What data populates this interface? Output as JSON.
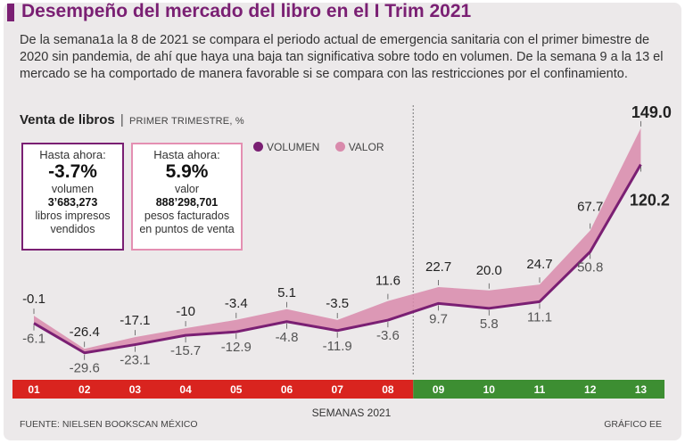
{
  "title": "Desempeño del mercado del libro en el I Trim 2021",
  "intro": "De la semana1a la 8 de 2021 se compara el periodo actual de emergencia sanitaria con el primer bimestre de 2020 sin pandemia, de ahí que haya una baja tan significativa sobre todo en volumen. De la semana 9 a la 13 el mercado se ha comportado de manera favorable si se compara con las restricciones por el confinamiento.",
  "subtitle": {
    "main": "Venta de libros",
    "separator": "|",
    "unit": "PRIMER TRIMESTRE, %"
  },
  "box_volume": {
    "head": "Hasta ahora:",
    "value": "-3.7%",
    "label": "volumen",
    "number": "3’683,273",
    "desc1": "libros impresos",
    "desc2": "vendidos"
  },
  "box_value": {
    "head": "Hasta ahora:",
    "value": "5.9%",
    "label": "valor",
    "number": "888’298,701",
    "desc1": "pesos facturados",
    "desc2": "en puntos de venta"
  },
  "footer": {
    "source": "FUENTE: NIELSEN BOOKSCAN MÉXICO",
    "credit": "GRÁFICO EE"
  },
  "colors": {
    "title": "#7a1f73",
    "volumen": "#7a1f73",
    "valor": "#d98aac",
    "weeks_red": "#d9241f",
    "weeks_green": "#3d8e32"
  },
  "chart_data": {
    "type": "area",
    "title": "Venta de libros",
    "xlabel": "SEMANAS 2021",
    "ylabel": "%",
    "categories": [
      "01",
      "02",
      "03",
      "04",
      "05",
      "06",
      "07",
      "08",
      "09",
      "10",
      "11",
      "12",
      "13"
    ],
    "ylim": [
      -30,
      150
    ],
    "divider_after_index": 7,
    "legend": [
      "VOLUMEN",
      "VALOR"
    ],
    "series": [
      {
        "name": "VOLUMEN",
        "type": "line",
        "values": [
          -6.1,
          -29.6,
          -23.1,
          -15.7,
          -12.9,
          -4.8,
          -11.9,
          -3.6,
          9.7,
          5.8,
          11.1,
          50.8,
          120.2
        ],
        "labels": [
          "-6.1",
          "-29.6",
          "-23.1",
          "-15.7",
          "-12.9",
          "-4.8",
          "-11.9",
          "-3.6",
          "9.7",
          "5.8",
          "11.1",
          "50.8",
          "120.2"
        ]
      },
      {
        "name": "VALOR",
        "type": "area",
        "values": [
          -0.1,
          -26.4,
          -17.1,
          -10,
          -3.4,
          5.1,
          -3.5,
          11.6,
          22.7,
          20.0,
          24.7,
          67.7,
          149.0
        ],
        "labels": [
          "-0.1",
          "-26.4",
          "-17.1",
          "-10",
          "-3.4",
          "5.1",
          "-3.5",
          "11.6",
          "22.7",
          "20.0",
          "24.7",
          "67.7",
          "149.0"
        ]
      }
    ]
  }
}
